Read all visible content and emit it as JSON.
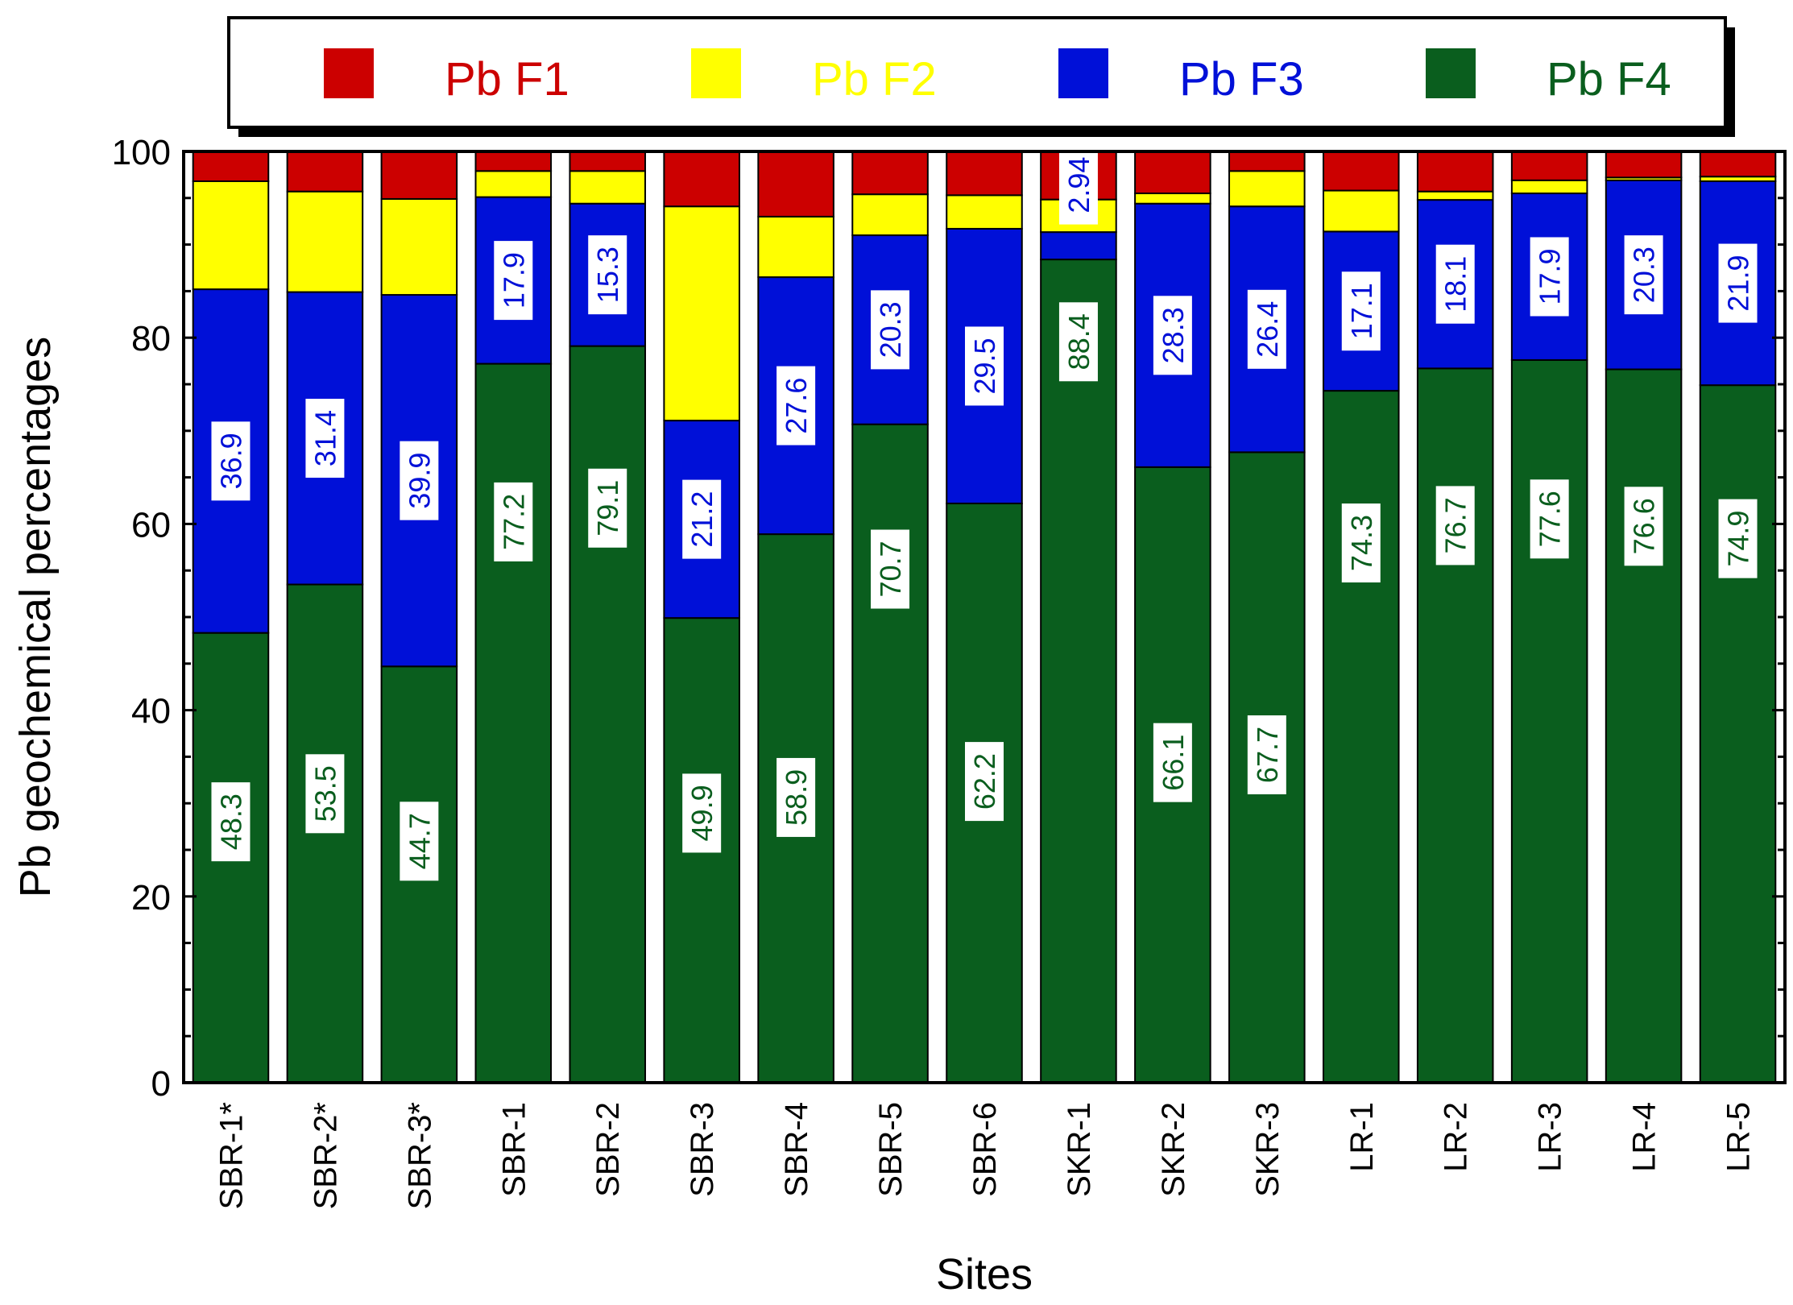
{
  "chart_data": {
    "type": "bar",
    "stacked": true,
    "title": "",
    "xlabel": "Sites",
    "ylabel": "Pb geochemical percentages",
    "ylim": [
      0,
      100
    ],
    "yticks": [
      "0",
      "20",
      "40",
      "60",
      "80",
      "100"
    ],
    "legend_position": "top",
    "categories": [
      "SBR-1*",
      "SBR-2*",
      "SBR-3*",
      "SBR-1",
      "SBR-2",
      "SBR-3",
      "SBR-4",
      "SBR-5",
      "SBR-6",
      "SKR-1",
      "SKR-2",
      "SKR-3",
      "LR-1",
      "LR-2",
      "LR-3",
      "LR-4",
      "LR-5"
    ],
    "series": [
      {
        "name": "Pb F4",
        "color": "#0a5e1e",
        "labeled": true,
        "values": [
          48.3,
          53.5,
          44.7,
          77.2,
          79.1,
          49.9,
          58.9,
          70.7,
          62.2,
          88.4,
          66.1,
          67.7,
          74.3,
          76.7,
          77.6,
          76.6,
          74.9
        ],
        "labels": [
          "48.3",
          "53.5",
          "44.7",
          "77.2",
          "79.1",
          "49.9",
          "58.9",
          "70.7",
          "62.2",
          "88.4",
          "66.1",
          "67.7",
          "74.3",
          "76.7",
          "77.6",
          "76.6",
          "74.9"
        ]
      },
      {
        "name": "Pb F3",
        "color": "#0010d8",
        "labeled": true,
        "values": [
          36.9,
          31.4,
          39.9,
          17.9,
          15.3,
          21.2,
          27.6,
          20.3,
          29.5,
          2.94,
          28.3,
          26.4,
          17.1,
          18.1,
          17.9,
          20.3,
          21.9
        ],
        "labels": [
          "36.9",
          "31.4",
          "39.9",
          "17.9",
          "15.3",
          "21.2",
          "27.6",
          "20.3",
          "29.5",
          "2.94",
          "28.3",
          "26.4",
          "17.1",
          "18.1",
          "17.9",
          "20.3",
          "21.9"
        ]
      },
      {
        "name": "Pb F2",
        "color": "#ffff00",
        "labeled": false,
        "values": [
          11.6,
          10.8,
          10.3,
          2.8,
          3.5,
          23.0,
          6.5,
          4.4,
          3.6,
          3.5,
          1.1,
          3.8,
          4.4,
          0.9,
          1.4,
          0.3,
          0.5
        ]
      },
      {
        "name": "Pb F1",
        "color": "#cc0000",
        "labeled": false,
        "values": [
          3.2,
          4.3,
          5.1,
          2.1,
          2.1,
          5.9,
          7.0,
          4.6,
          4.7,
          5.16,
          4.5,
          2.1,
          4.2,
          4.3,
          3.1,
          2.8,
          2.7
        ]
      }
    ]
  }
}
